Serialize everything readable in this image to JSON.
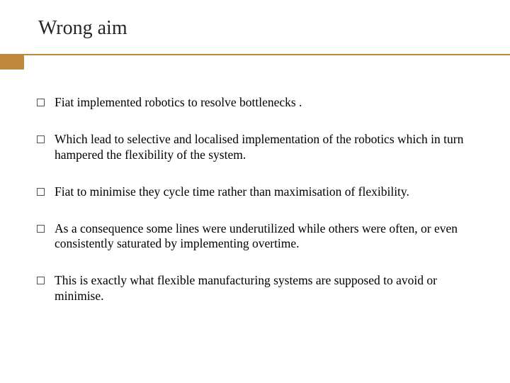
{
  "title": "Wrong aim",
  "accent_color": "#c0873e",
  "accent_line_color": "#c0873e",
  "bullets": [
    {
      "text": "Fiat implemented robotics to resolve bottlenecks ."
    },
    {
      "text": "Which lead to selective and localised implementation of the robotics which in turn hampered the flexibility of the system."
    },
    {
      "text": "Fiat to minimise they cycle time rather than maximisation of flexibility."
    },
    {
      "text": "As a consequence some lines were underutilized while others were often, or even consistently saturated by implementing overtime."
    },
    {
      "text": "This is exactly what flexible manufacturing systems are supposed to avoid or minimise."
    }
  ]
}
